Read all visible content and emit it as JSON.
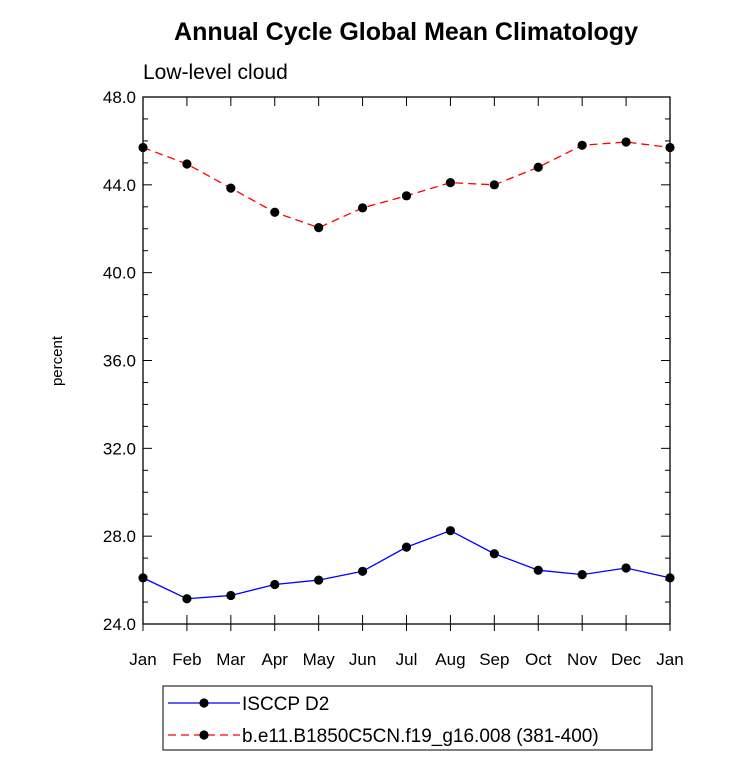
{
  "chart_data": {
    "type": "line",
    "title": "Annual Cycle Global Mean Climatology",
    "subtitle": "Low-level cloud",
    "xlabel": "",
    "ylabel": "percent",
    "categories": [
      "Jan",
      "Feb",
      "Mar",
      "Apr",
      "May",
      "Jun",
      "Jul",
      "Aug",
      "Sep",
      "Oct",
      "Nov",
      "Dec",
      "Jan"
    ],
    "ylim": [
      24.0,
      48.0
    ],
    "yticks": [
      "24.0",
      "28.0",
      "32.0",
      "36.0",
      "40.0",
      "44.0",
      "48.0"
    ],
    "grid": false,
    "legend_placement": "bottom",
    "series": [
      {
        "name": "ISCCP D2",
        "color": "#0000ff",
        "dash": "solid",
        "values": [
          26.1,
          25.15,
          25.3,
          25.8,
          26.0,
          26.4,
          27.5,
          28.25,
          27.2,
          26.45,
          26.25,
          26.55,
          26.1
        ]
      },
      {
        "name": "b.e11.B1850C5CN.f19_g16.008 (381-400)",
        "color": "#ff0000",
        "dash": "dashed",
        "values": [
          45.7,
          44.95,
          43.85,
          42.75,
          42.05,
          42.95,
          43.5,
          44.1,
          44.0,
          44.8,
          45.8,
          45.95,
          45.7
        ]
      }
    ]
  }
}
